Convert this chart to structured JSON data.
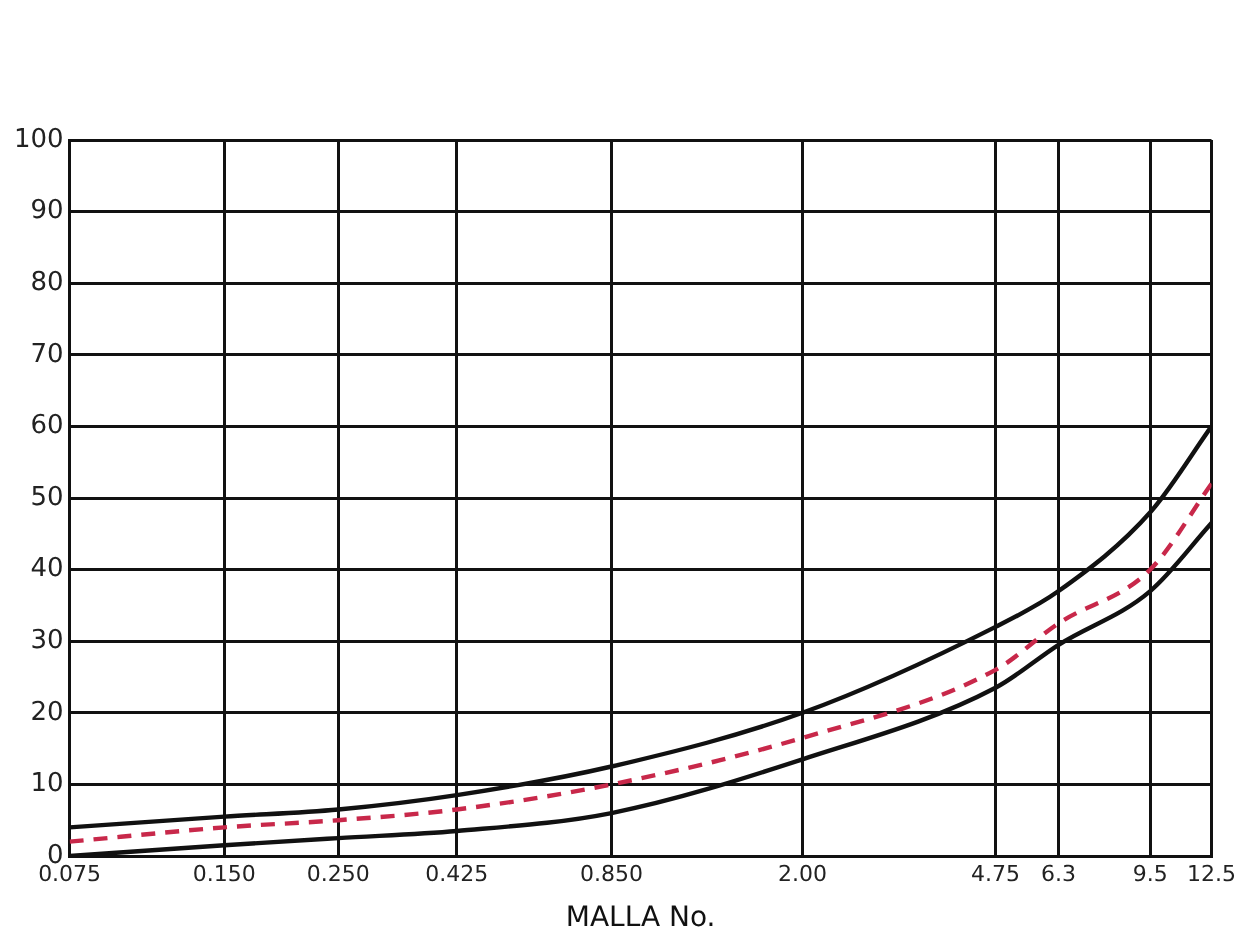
{
  "chart_data": {
    "type": "line",
    "xlabel": "MALLA No.",
    "log": "x",
    "grid": true,
    "legend": false,
    "marker": "none",
    "x": [
      0.075,
      0.15,
      0.25,
      0.425,
      0.85,
      2,
      4.75,
      6.3,
      9.5,
      12.5
    ],
    "xlim": [
      0.075,
      12.5
    ],
    "xticks": [
      0.075,
      {
        "value": 0.15,
        "label": "0.150"
      },
      {
        "value": 0.25,
        "label": "0.250"
      },
      0.425,
      {
        "value": 0.85,
        "label": "0.850"
      },
      {
        "value": 2,
        "label": "2.00"
      },
      4.75,
      6.3,
      9.5,
      12.5
    ],
    "ylim": [
      0,
      100
    ],
    "yticks": [
      0,
      10,
      20,
      30,
      40,
      50,
      60,
      70,
      80,
      90,
      100
    ],
    "series": [
      {
        "color": "#111111",
        "line_style": "solid",
        "values": [
          4,
          5.5,
          6.5,
          8.5,
          12.5,
          20,
          32,
          37,
          48,
          60
        ]
      },
      {
        "color": "#111111",
        "line_style": "solid",
        "values": [
          0,
          1.5,
          2.5,
          3.5,
          6,
          13.5,
          23.5,
          29.5,
          37,
          46.5
        ]
      },
      {
        "color": "#c8284a",
        "line_style": "dashed",
        "values": [
          2,
          4,
          5,
          6.5,
          10,
          16.5,
          26,
          32.5,
          40,
          52
        ]
      }
    ]
  }
}
